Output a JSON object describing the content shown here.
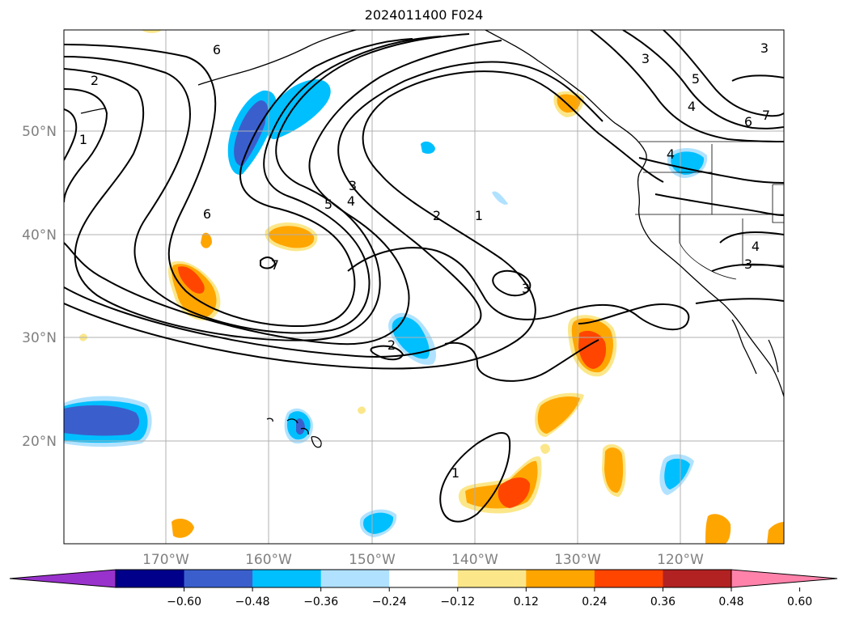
{
  "title": "2024011400 F024",
  "map": {
    "lat_labels": [
      "50°N",
      "40°N",
      "30°N",
      "20°N"
    ],
    "lon_labels": [
      "170°W",
      "160°W",
      "150°W",
      "140°W",
      "130°W",
      "120°W"
    ],
    "contour_labels": [
      {
        "id": "c6-nw",
        "text": "6"
      },
      {
        "id": "c2-nw",
        "text": "2"
      },
      {
        "id": "c1-nw",
        "text": "1"
      },
      {
        "id": "c6-w",
        "text": "6"
      },
      {
        "id": "c7-low",
        "text": "7"
      },
      {
        "id": "c5-mid",
        "text": "5"
      },
      {
        "id": "c4-mid",
        "text": "4"
      },
      {
        "id": "c3-mid",
        "text": "3"
      },
      {
        "id": "c2-mid",
        "text": "2"
      },
      {
        "id": "c1-mid",
        "text": "1"
      },
      {
        "id": "c3-small",
        "text": "3"
      },
      {
        "id": "c2-small",
        "text": "2"
      },
      {
        "id": "c1-south",
        "text": "1"
      },
      {
        "id": "c3-ne",
        "text": "3"
      },
      {
        "id": "c5-ne",
        "text": "5"
      },
      {
        "id": "c4-ne",
        "text": "4"
      },
      {
        "id": "c6-ne",
        "text": "6"
      },
      {
        "id": "c3-ne2",
        "text": "3"
      },
      {
        "id": "c7-ne",
        "text": "7"
      },
      {
        "id": "c4-coast",
        "text": "4"
      },
      {
        "id": "c4-east",
        "text": "4"
      },
      {
        "id": "c3-east",
        "text": "3"
      }
    ]
  },
  "colorbar": {
    "colors": [
      "#9932cc",
      "#00008b",
      "#3a5fcd",
      "#00bfff",
      "#b0e2ff",
      "#ffffff",
      "#fbe78a",
      "#ffa500",
      "#ff4500",
      "#b22222",
      "#ff82ab"
    ],
    "ticks": [
      "−0.60",
      "−0.48",
      "−0.36",
      "−0.24",
      "−0.12",
      "0.12",
      "0.24",
      "0.36",
      "0.48",
      "0.60"
    ]
  },
  "legend_colors": {
    "neg_1": "#b0e2ff",
    "neg_2": "#00bfff",
    "neg_3": "#3a5fcd",
    "neg_4": "#00008b",
    "pos_1": "#fbe78a",
    "pos_2": "#ffa500",
    "pos_3": "#ff4500"
  }
}
